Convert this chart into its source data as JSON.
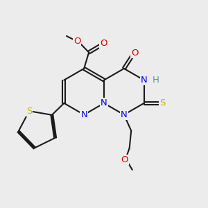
{
  "bg": "#ececec",
  "bc": "#1a1a1a",
  "Nc": "#0000ee",
  "Oc": "#dd0000",
  "Sc": "#bbbb00",
  "Hc": "#559999",
  "lw": 1.5,
  "figsize": [
    3.0,
    3.0
  ],
  "dpi": 100,
  "xlim": [
    0,
    10
  ],
  "ylim": [
    0,
    10
  ],
  "bL": 1.12
}
